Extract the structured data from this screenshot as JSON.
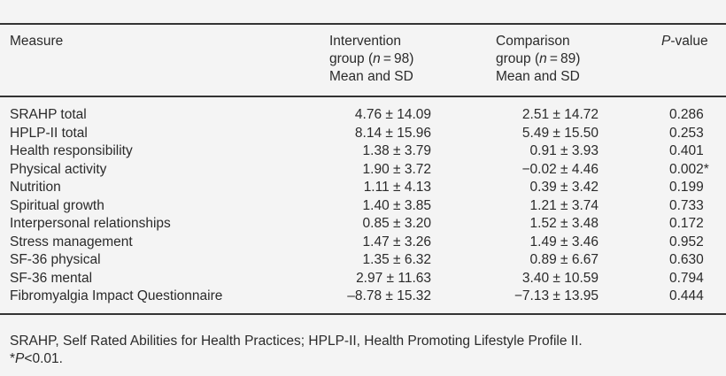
{
  "header": {
    "measure": "Measure",
    "intervention": {
      "line1": "Intervention",
      "line2_prefix": "group (",
      "line2_n": "n",
      "line2_suffix": " = 98)",
      "line3": "Mean and SD"
    },
    "comparison": {
      "line1": "Comparison",
      "line2_prefix": "group (",
      "line2_n": "n",
      "line2_suffix": " = 89)",
      "line3": "Mean and SD"
    },
    "pvalue": {
      "italic": "P",
      "rest": "-value"
    }
  },
  "rows": [
    {
      "measure": "SRAHP total",
      "intervention": "4.76 ± 14.09",
      "comparison": "2.51 ± 14.72",
      "p": "0.286"
    },
    {
      "measure": "HPLP-II total",
      "intervention": "8.14 ± 15.96",
      "comparison": "5.49 ± 15.50",
      "p": "0.253"
    },
    {
      "measure": "Health responsibility",
      "intervention": "1.38 ± 3.79",
      "comparison": "0.91 ± 3.93",
      "p": "0.401"
    },
    {
      "measure": "Physical activity",
      "intervention": "1.90 ± 3.72",
      "comparison": "−0.02 ± 4.46",
      "p": "0.002*"
    },
    {
      "measure": "Nutrition",
      "intervention": "1.11 ± 4.13",
      "comparison": "0.39 ± 3.42",
      "p": "0.199"
    },
    {
      "measure": "Spiritual growth",
      "intervention": "1.40 ± 3.85",
      "comparison": "1.21 ± 3.74",
      "p": "0.733"
    },
    {
      "measure": "Interpersonal relationships",
      "intervention": "0.85 ± 3.20",
      "comparison": "1.52 ± 3.48",
      "p": "0.172"
    },
    {
      "measure": "Stress management",
      "intervention": "1.47 ± 3.26",
      "comparison": "1.49 ± 3.46",
      "p": "0.952"
    },
    {
      "measure": "SF-36 physical",
      "intervention": "1.35 ± 6.32",
      "comparison": "0.89 ± 6.67",
      "p": "0.630"
    },
    {
      "measure": "SF-36 mental",
      "intervention": "2.97 ± 11.63",
      "comparison": "3.40 ± 10.59",
      "p": "0.794"
    },
    {
      "measure": "Fibromyalgia Impact Questionnaire",
      "intervention": "–8.78 ± 15.32",
      "comparison": "−7.13 ± 13.95",
      "p": "0.444"
    }
  ],
  "footnote": {
    "line1": "SRAHP, Self Rated Abilities for Health Practices; HPLP-II, Health Promoting Lifestyle Profile II.",
    "line2_prefix": "*",
    "line2_italic": "P",
    "line2_rest": "<0.01."
  }
}
